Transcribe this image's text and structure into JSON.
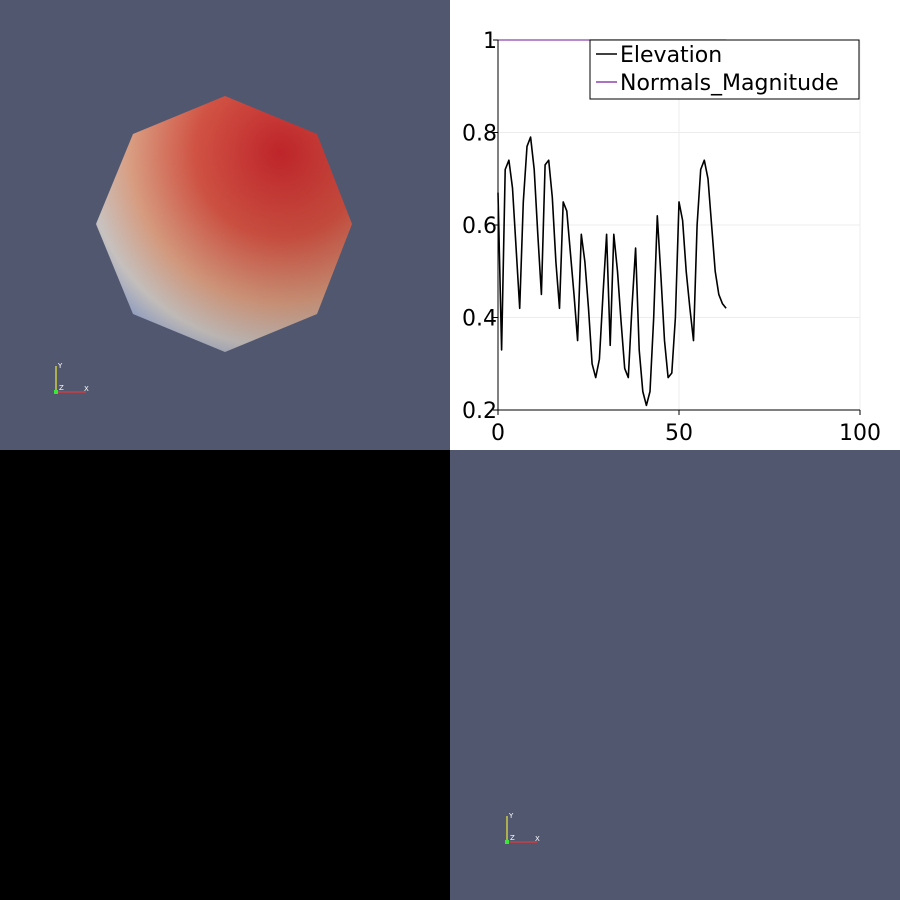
{
  "views": {
    "render_view_top_left": {
      "background": "#525770",
      "object": "sphere",
      "colormap": "cool-to-warm"
    },
    "line_chart_view": {
      "background": "#ffffff"
    },
    "empty_view": {
      "background": "#000000"
    },
    "render_view_bottom_right": {
      "background": "#525770"
    }
  },
  "orientation_axes": {
    "x_label": "X",
    "y_label": "Y",
    "z_label": "Z",
    "x_color": "#e33a3a",
    "y_color": "#e8e83a",
    "z_color": "#3ae83a"
  },
  "chart_data": {
    "type": "line",
    "title": "",
    "xlabel": "",
    "ylabel": "",
    "xlim": [
      0,
      100
    ],
    "ylim": [
      0.2,
      1.0
    ],
    "x_ticks": [
      "0",
      "50",
      "100"
    ],
    "y_ticks": [
      "0.2",
      "0.4",
      "0.6",
      "0.8",
      "1"
    ],
    "grid": true,
    "legend_position": "top-right",
    "series": [
      {
        "name": "Elevation",
        "color": "#000000",
        "x": [
          0,
          1,
          2,
          3,
          4,
          5,
          6,
          7,
          8,
          9,
          10,
          11,
          12,
          13,
          14,
          15,
          16,
          17,
          18,
          19,
          20,
          21,
          22,
          23,
          24,
          25,
          26,
          27,
          28,
          29,
          30,
          31,
          32,
          33,
          34,
          35,
          36,
          37,
          38,
          39,
          40,
          41,
          42,
          43,
          44,
          45,
          46,
          47,
          48,
          49,
          50,
          51,
          52,
          53,
          54,
          55,
          56,
          57,
          58,
          59,
          60,
          61,
          62,
          63
        ],
        "values": [
          0.67,
          0.33,
          0.72,
          0.74,
          0.68,
          0.55,
          0.42,
          0.65,
          0.77,
          0.79,
          0.72,
          0.58,
          0.45,
          0.73,
          0.74,
          0.66,
          0.52,
          0.42,
          0.65,
          0.63,
          0.54,
          0.45,
          0.35,
          0.58,
          0.52,
          0.42,
          0.3,
          0.27,
          0.31,
          0.45,
          0.58,
          0.34,
          0.58,
          0.5,
          0.39,
          0.29,
          0.27,
          0.42,
          0.55,
          0.33,
          0.24,
          0.21,
          0.24,
          0.4,
          0.62,
          0.49,
          0.35,
          0.27,
          0.28,
          0.4,
          0.65,
          0.61,
          0.5,
          0.42,
          0.35,
          0.6,
          0.72,
          0.74,
          0.7,
          0.6,
          0.5,
          0.45,
          0.43,
          0.42
        ]
      },
      {
        "name": "Normals_Magnitude",
        "color": "#8e44ad",
        "x": [
          0,
          63
        ],
        "values": [
          1.0,
          1.0
        ]
      }
    ]
  }
}
